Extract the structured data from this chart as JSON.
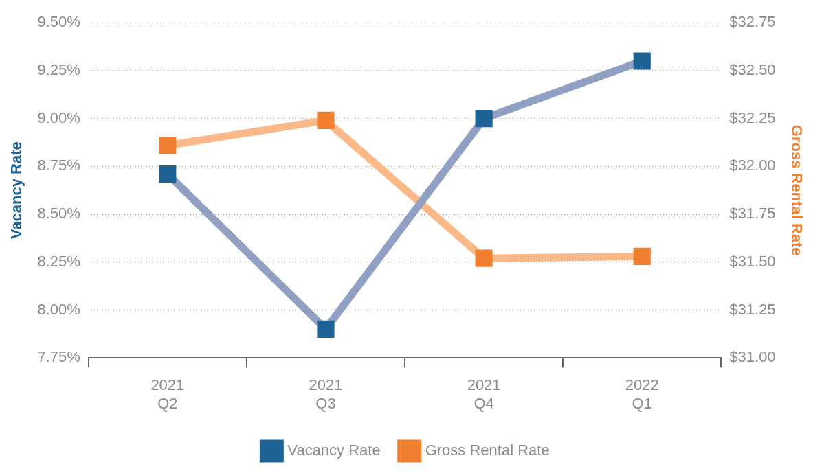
{
  "chart_data": {
    "type": "line",
    "categories": [
      "2021\nQ2",
      "2021\nQ3",
      "2021\nQ4",
      "2022\nQ1"
    ],
    "ylabel": "Vacancy Rate",
    "y2label": "Gross Rental Rate",
    "series": [
      {
        "name": "Vacancy Rate",
        "color": "#8fa0c2",
        "colors": [
          "#1f6396",
          "#1f6396",
          "#1f6396",
          "#1f6396"
        ],
        "values": [
          8.71,
          7.9,
          9.0,
          9.3
        ]
      },
      {
        "name": "Gross Rental Rate",
        "color": "#fbb98a",
        "colors": [
          "#f08030",
          "#f08030",
          "#f08030",
          "#f08030"
        ],
        "values": [
          32.11,
          32.24,
          31.52,
          31.53
        ],
        "axis": "y2"
      }
    ],
    "ylim": [
      7.75,
      9.5
    ],
    "yticks": [
      {
        "value": 7.75,
        "label": "7.75%"
      },
      {
        "value": 8.0,
        "label": "8.00%"
      },
      {
        "value": 8.25,
        "label": "8.25%"
      },
      {
        "value": 8.5,
        "label": "8.50%"
      },
      {
        "value": 8.75,
        "label": "8.75%"
      },
      {
        "value": 9.0,
        "label": "9.00%"
      },
      {
        "value": 9.25,
        "label": "9.25%"
      },
      {
        "value": 9.5,
        "label": "9.50%"
      }
    ],
    "y2lim": [
      31,
      32.75
    ],
    "y2ticks": [
      {
        "value": 31,
        "label": "$31.00"
      },
      {
        "value": 31.25,
        "label": "$31.25"
      },
      {
        "value": 31.5,
        "label": "$31.50"
      },
      {
        "value": 31.75,
        "label": "$31.75"
      },
      {
        "value": 32,
        "label": "$32.00"
      },
      {
        "value": 32.25,
        "label": "$32.25"
      },
      {
        "value": 32.5,
        "label": "$32.50"
      },
      {
        "value": 32.75,
        "label": "$32.75"
      }
    ],
    "grid": "y",
    "legend": "bottom",
    "marker": "square",
    "line_style": "solid"
  }
}
